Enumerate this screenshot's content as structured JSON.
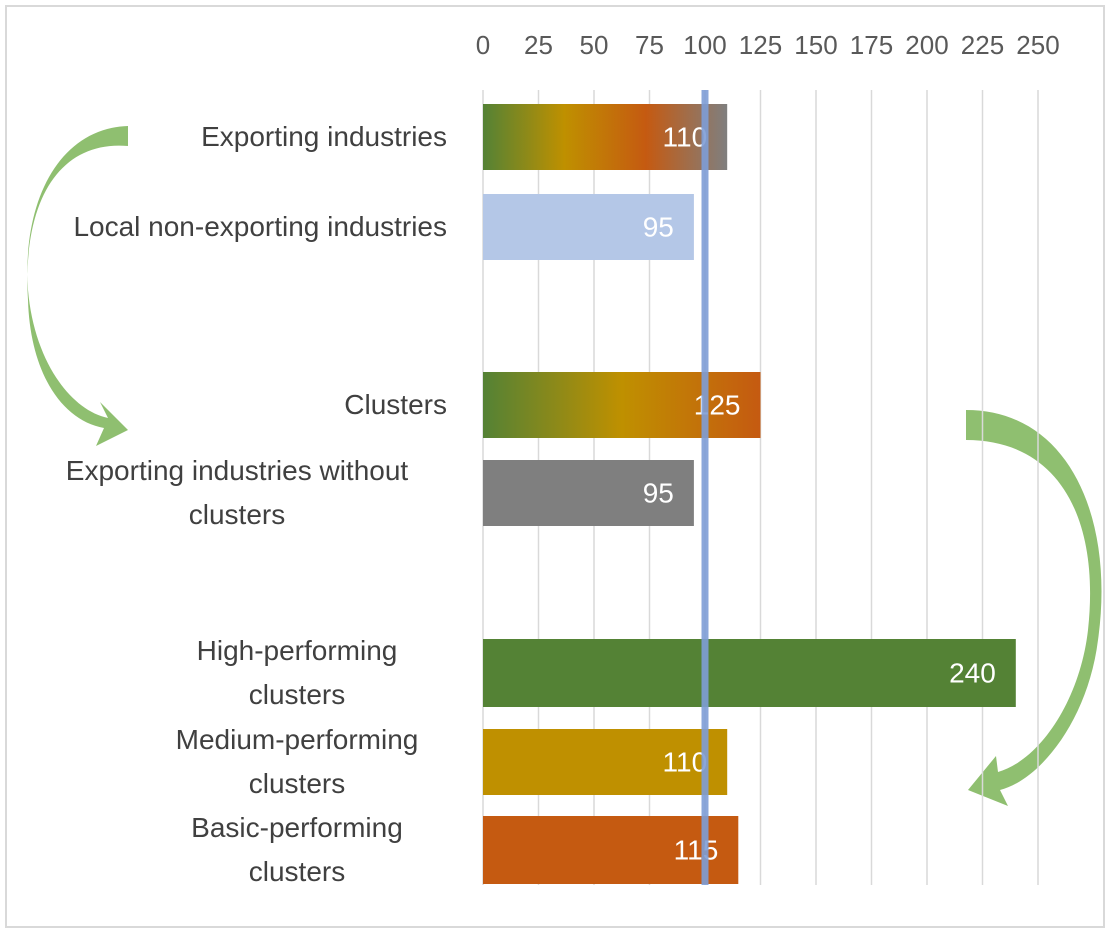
{
  "chart_data": {
    "type": "bar",
    "orientation": "horizontal",
    "categories": [
      "Exporting industries",
      "Local non-exporting industries",
      "Clusters",
      "Exporting industries without clusters",
      "High-performing clusters",
      "Medium-performing clusters",
      "Basic-performing clusters"
    ],
    "values": [
      110,
      95,
      125,
      95,
      240,
      110,
      115
    ],
    "colors": [
      [
        "#548235",
        "#bf9000",
        "#c55a11",
        "#7f7f7f"
      ],
      "#b4c7e7",
      [
        "#548235",
        "#bf9000",
        "#c55a11"
      ],
      "#7f7f7f",
      "#548235",
      "#bf9000",
      "#c55a11"
    ],
    "xlim": [
      0,
      250
    ],
    "xticks": [
      0,
      25,
      50,
      75,
      100,
      125,
      150,
      175,
      200,
      225,
      250
    ],
    "grid": true,
    "reference_line": 100,
    "reference_color": "#7f9ed6"
  }
}
